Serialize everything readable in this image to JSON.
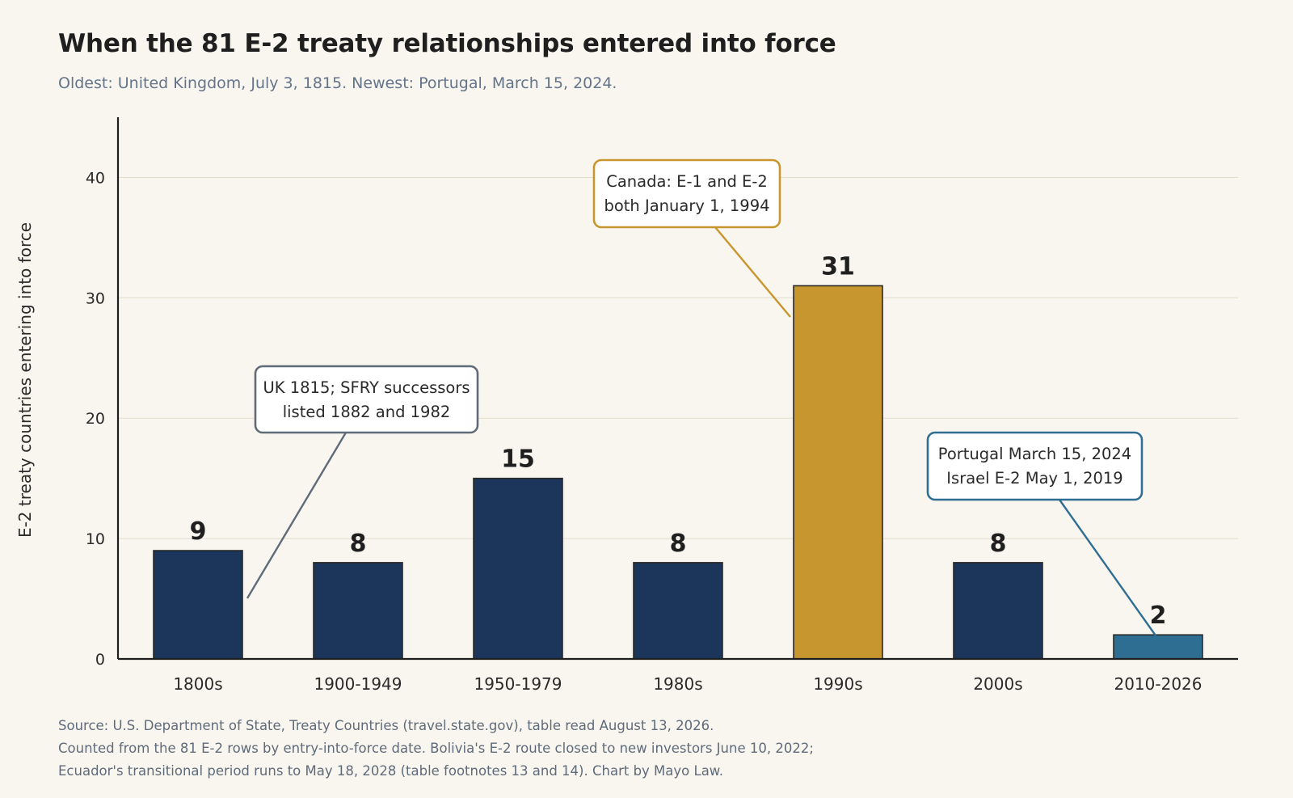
{
  "title": "When the 81 E-2 treaty relationships entered into force",
  "subtitle": "Oldest: United Kingdom, July 3, 1815.  Newest: Portugal, March 15, 2024.",
  "colors": {
    "background": "#f9f6ef",
    "bar_default": "#1b365a",
    "bar_highlight": "#c8962e",
    "bar_recent": "#2e6e92",
    "callout_gray": "#5f6b78",
    "callout_gold": "#c8962e",
    "callout_blue": "#2e6e92"
  },
  "chart_data": {
    "type": "bar",
    "categories": [
      "1800s",
      "1900-1949",
      "1950-1979",
      "1980s",
      "1990s",
      "2000s",
      "2010-2026"
    ],
    "values": [
      9,
      8,
      15,
      8,
      31,
      8,
      2
    ],
    "ylabel": "E-2 treaty countries entering into force",
    "xlabel": "",
    "ylim": [
      0,
      45
    ],
    "yticks": [
      0,
      10,
      20,
      30,
      40
    ],
    "grid": true,
    "bar_colors": [
      "bar_default",
      "bar_default",
      "bar_default",
      "bar_default",
      "bar_highlight",
      "bar_default",
      "bar_recent"
    ],
    "annotations": [
      {
        "lines": [
          "UK 1815; SFRY successors",
          "listed 1882 and 1982"
        ],
        "category": "1800s",
        "style": "callout_gray"
      },
      {
        "lines": [
          "Canada: E-1 and E-2",
          "both January 1, 1994"
        ],
        "category": "1990s",
        "style": "callout_gold"
      },
      {
        "lines": [
          "Portugal March 15, 2024",
          "Israel E-2 May 1, 2019"
        ],
        "category": "2010-2026",
        "style": "callout_blue"
      }
    ]
  },
  "footer": {
    "line1": "Source: U.S. Department of State, Treaty Countries (travel.state.gov), table read August 13, 2026.",
    "line2": "Counted from the 81 E-2 rows by entry-into-force date. Bolivia's E-2 route closed to new investors June 10, 2022;",
    "line3": "Ecuador's transitional period runs to May 18, 2028 (table footnotes 13 and 14). Chart by Mayo Law."
  }
}
